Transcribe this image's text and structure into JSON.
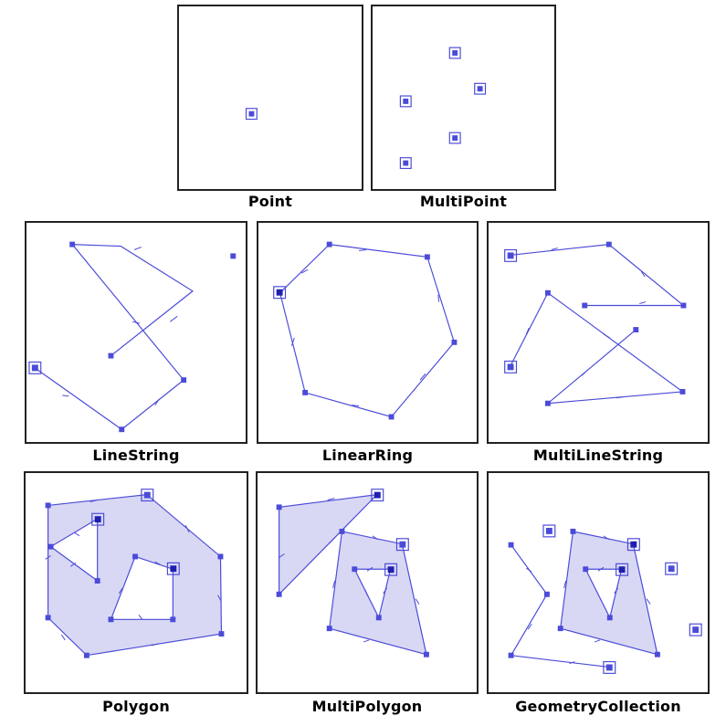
{
  "labels": {
    "point": "Point",
    "multipoint": "MultiPoint",
    "linestring": "LineString",
    "linearring": "LinearRing",
    "multilinestring": "MultiLineString",
    "polygon": "Polygon",
    "multipolygon": "MultiPolygon",
    "geometrycollection": "GeometryCollection"
  },
  "colors": {
    "stroke": "#4b4bd9",
    "fill": "#d8d8f4",
    "vertex": "#4b4bd9",
    "frame": "#222222"
  }
}
